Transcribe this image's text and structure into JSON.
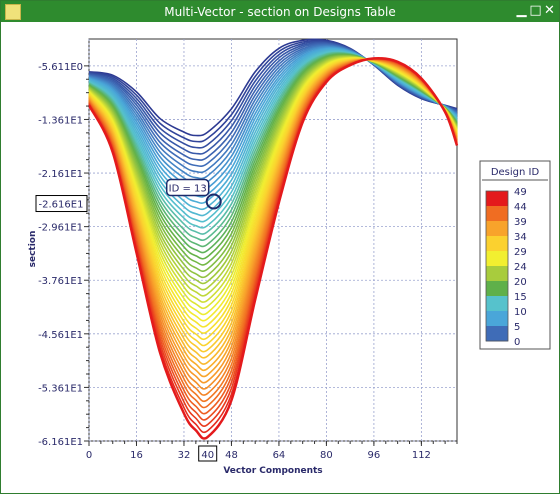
{
  "window": {
    "title": "Multi-Vector - section on Designs Table",
    "icons": [
      "app-icon",
      "minimize-icon",
      "maximize-icon",
      "close-icon"
    ]
  },
  "chart_data": {
    "type": "line",
    "xlabel": "Vector Components",
    "ylabel": "section",
    "x_ticks": [
      0,
      16,
      32,
      48,
      64,
      80,
      96,
      112
    ],
    "y_ticks": [
      "-5.611E0",
      "-1.361E1",
      "-2.161E1",
      "-2.961E1",
      "-3.761E1",
      "-4.561E1",
      "-5.361E1",
      "-6.161E1"
    ],
    "y_tick_values": [
      -5.611,
      -13.61,
      -21.61,
      -29.61,
      -37.61,
      -45.61,
      -53.61,
      -61.61
    ],
    "xlim": [
      0,
      124
    ],
    "ylim": [
      -61.61,
      -1.6
    ],
    "grid": true,
    "series_count": 50,
    "series_note_id_range": [
      0,
      49
    ],
    "series": [
      {
        "name": "ID 49",
        "x": [
          0,
          8,
          16,
          24,
          32,
          36,
          40,
          48,
          56,
          64,
          72,
          80,
          88,
          96,
          104,
          112,
          120,
          124
        ],
        "values": [
          -11.5,
          -18.5,
          -33.5,
          -48.5,
          -57.5,
          -60.0,
          -61.0,
          -55.5,
          -40.5,
          -26.0,
          -14.0,
          -8.0,
          -5.5,
          -4.5,
          -5.0,
          -7.5,
          -12.5,
          -17.5
        ]
      },
      {
        "name": "ID 0",
        "x": [
          0,
          8,
          16,
          24,
          32,
          36,
          40,
          48,
          56,
          64,
          72,
          80,
          88,
          96,
          104,
          112,
          120,
          124
        ],
        "values": [
          -6.5,
          -7.0,
          -9.5,
          -13.5,
          -15.5,
          -16.0,
          -15.5,
          -12.0,
          -6.5,
          -3.0,
          -1.8,
          -1.8,
          -3.0,
          -5.5,
          -8.5,
          -10.5,
          -11.5,
          -12.0
        ]
      }
    ],
    "highlighted": {
      "label": "ID = 13",
      "x_label": "40",
      "y_label": "-2.616E1",
      "x": 40,
      "y": -26.16
    },
    "legend": {
      "title": "Design ID",
      "position": "right",
      "labels": [
        "49",
        "44",
        "39",
        "34",
        "29",
        "24",
        "20",
        "15",
        "10",
        "5",
        "0"
      ],
      "colors": [
        "#e41a1c",
        "#f06d22",
        "#f8a32b",
        "#fbd12f",
        "#f2ef30",
        "#a8cc3d",
        "#5fb04a",
        "#56c2cc",
        "#4aa6d9",
        "#3f6cb7",
        "#2d3a92"
      ]
    }
  }
}
